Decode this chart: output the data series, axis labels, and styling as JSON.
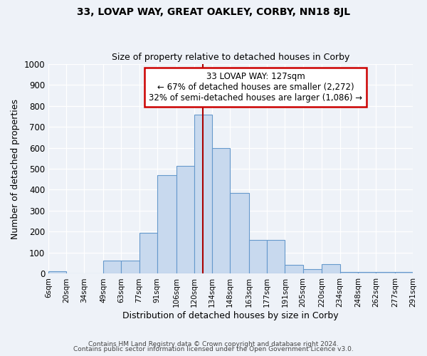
{
  "title": "33, LOVAP WAY, GREAT OAKLEY, CORBY, NN18 8JL",
  "subtitle": "Size of property relative to detached houses in Corby",
  "xlabel": "Distribution of detached houses by size in Corby",
  "ylabel": "Number of detached properties",
  "bar_color": "#c8d9ee",
  "bar_edge_color": "#6699cc",
  "bar_left_edges": [
    6,
    20,
    34,
    49,
    63,
    77,
    91,
    106,
    120,
    134,
    148,
    163,
    177,
    191,
    205,
    220,
    234,
    248,
    262,
    277
  ],
  "bar_widths": [
    14,
    14,
    15,
    14,
    14,
    14,
    15,
    14,
    14,
    14,
    15,
    14,
    14,
    14,
    15,
    14,
    14,
    14,
    15,
    14
  ],
  "bar_heights": [
    13,
    0,
    0,
    63,
    63,
    195,
    470,
    515,
    757,
    598,
    385,
    160,
    160,
    43,
    22,
    45,
    8,
    8,
    8,
    8
  ],
  "tick_labels": [
    "6sqm",
    "20sqm",
    "34sqm",
    "49sqm",
    "63sqm",
    "77sqm",
    "91sqm",
    "106sqm",
    "120sqm",
    "134sqm",
    "148sqm",
    "163sqm",
    "177sqm",
    "191sqm",
    "205sqm",
    "220sqm",
    "234sqm",
    "248sqm",
    "262sqm",
    "277sqm",
    "291sqm"
  ],
  "tick_positions": [
    6,
    20,
    34,
    49,
    63,
    77,
    91,
    106,
    120,
    134,
    148,
    163,
    177,
    191,
    205,
    220,
    234,
    248,
    262,
    277,
    291
  ],
  "vline_x": 127,
  "vline_color": "#aa0000",
  "ylim": [
    0,
    1000
  ],
  "yticks": [
    0,
    100,
    200,
    300,
    400,
    500,
    600,
    700,
    800,
    900,
    1000
  ],
  "annotation_title": "33 LOVAP WAY: 127sqm",
  "annotation_line1": "← 67% of detached houses are smaller (2,272)",
  "annotation_line2": "32% of semi-detached houses are larger (1,086) →",
  "annotation_box_color": "#ffffff",
  "annotation_box_edge": "#cc0000",
  "footer1": "Contains HM Land Registry data © Crown copyright and database right 2024.",
  "footer2": "Contains public sector information licensed under the Open Government Licence v3.0.",
  "bg_color": "#eef2f8",
  "grid_color": "#ffffff",
  "xlim_left": 6,
  "xlim_right": 291
}
